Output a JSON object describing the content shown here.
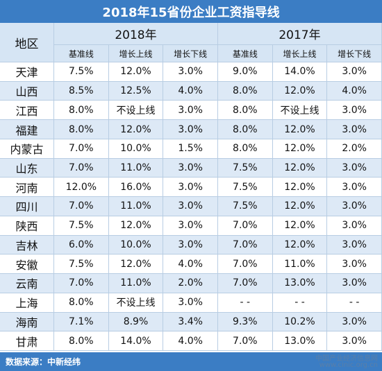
{
  "header": {
    "title": "2018年15省份企业工资指导线"
  },
  "table": {
    "region_header": "地区",
    "years": [
      "2018年",
      "2017年"
    ],
    "subheaders": [
      "基准线",
      "增长上线",
      "增长下线",
      "基准线",
      "增长上线",
      "增长下线"
    ],
    "rows": [
      [
        "天津",
        "7.5%",
        "12.0%",
        "3.0%",
        "9.0%",
        "14.0%",
        "3.0%"
      ],
      [
        "山西",
        "8.5%",
        "12.5%",
        "4.0%",
        "8.0%",
        "12.0%",
        "4.0%"
      ],
      [
        "江西",
        "8.0%",
        "不设上线",
        "3.0%",
        "8.0%",
        "不设上线",
        "3.0%"
      ],
      [
        "福建",
        "8.0%",
        "12.0%",
        "3.0%",
        "8.0%",
        "12.0%",
        "3.0%"
      ],
      [
        "内蒙古",
        "7.0%",
        "10.0%",
        "1.5%",
        "8.0%",
        "12.0%",
        "2.0%"
      ],
      [
        "山东",
        "7.0%",
        "11.0%",
        "3.0%",
        "7.5%",
        "12.0%",
        "3.0%"
      ],
      [
        "河南",
        "12.0%",
        "16.0%",
        "3.0%",
        "7.5%",
        "12.0%",
        "3.0%"
      ],
      [
        "四川",
        "7.0%",
        "11.0%",
        "3.0%",
        "7.5%",
        "12.0%",
        "3.0%"
      ],
      [
        "陕西",
        "7.5%",
        "12.0%",
        "3.0%",
        "7.0%",
        "12.0%",
        "3.0%"
      ],
      [
        "吉林",
        "6.0%",
        "10.0%",
        "3.0%",
        "7.0%",
        "12.0%",
        "3.0%"
      ],
      [
        "安徽",
        "7.5%",
        "12.0%",
        "4.0%",
        "7.0%",
        "11.0%",
        "3.0%"
      ],
      [
        "云南",
        "7.0%",
        "11.0%",
        "2.0%",
        "7.0%",
        "13.0%",
        "3.0%"
      ],
      [
        "上海",
        "8.0%",
        "不设上线",
        "3.0%",
        "- -",
        "- -",
        "- -"
      ],
      [
        "海南",
        "7.1%",
        "8.9%",
        "3.4%",
        "9.3%",
        "10.2%",
        "3.0%"
      ],
      [
        "甘肃",
        "8.0%",
        "14.0%",
        "4.0%",
        "7.0%",
        "13.0%",
        "3.0%"
      ]
    ]
  },
  "footer": {
    "source": "数据来源：中新经纬",
    "watermark": "中国产业经济信息网",
    "watermark_url": "www.cinic.org.cn"
  }
}
